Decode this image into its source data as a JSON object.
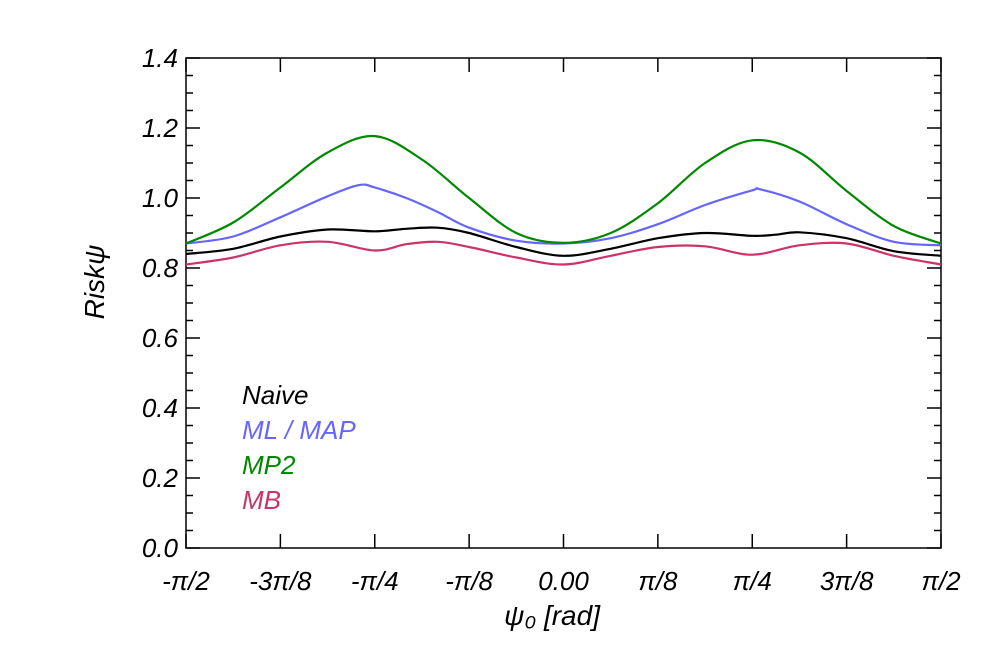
{
  "chart_data": {
    "type": "line",
    "title": "",
    "xlabel": "ψ₀ [rad]",
    "ylabel": "Riskψ",
    "xlim": [
      -1.5708,
      1.5708
    ],
    "ylim": [
      0.0,
      1.4
    ],
    "xticks": [
      -1.5708,
      -1.1781,
      -0.7854,
      -0.3927,
      0.0,
      0.3927,
      0.7854,
      1.1781,
      1.5708
    ],
    "xtick_labels": [
      "-π/2",
      "-3π/8",
      "-π/4",
      "-π/8",
      "0.00",
      "π/8",
      "π/4",
      "3π/8",
      "π/2"
    ],
    "yticks": [
      0.0,
      0.2,
      0.4,
      0.6,
      0.8,
      1.0,
      1.2,
      1.4
    ],
    "ytick_labels": [
      "0.0",
      "0.2",
      "0.4",
      "0.6",
      "0.8",
      "1.0",
      "1.2",
      "1.4"
    ],
    "grid": false,
    "legend_position": "lower-left",
    "series": [
      {
        "name": "Naive",
        "color": "#000000",
        "x": [
          -1.5708,
          -1.3744,
          -1.1781,
          -0.9817,
          -0.7854,
          -0.6545,
          -0.5236,
          -0.3927,
          -0.1963,
          0.0,
          0.1963,
          0.3927,
          0.589,
          0.7854,
          0.8836,
          0.9817,
          1.1781,
          1.3744,
          1.5708
        ],
        "y": [
          0.84,
          0.855,
          0.89,
          0.91,
          0.905,
          0.912,
          0.915,
          0.9,
          0.86,
          0.835,
          0.855,
          0.885,
          0.9,
          0.892,
          0.895,
          0.902,
          0.885,
          0.848,
          0.835
        ]
      },
      {
        "name": "ML / MAP",
        "color": "#6666ff",
        "x": [
          -1.5708,
          -1.3744,
          -1.1781,
          -0.9817,
          -0.8509,
          -0.7854,
          -0.6545,
          -0.5236,
          -0.3927,
          -0.1963,
          0.0,
          0.1963,
          0.3927,
          0.589,
          0.7854,
          0.8181,
          0.9817,
          1.1781,
          1.3744,
          1.5708
        ],
        "y": [
          0.87,
          0.89,
          0.945,
          1.005,
          1.037,
          1.03,
          1.0,
          0.96,
          0.915,
          0.878,
          0.87,
          0.885,
          0.925,
          0.98,
          1.022,
          1.025,
          0.99,
          0.925,
          0.875,
          0.865
        ]
      },
      {
        "name": "MP2",
        "color": "#008800",
        "x": [
          -1.5708,
          -1.3744,
          -1.1781,
          -0.9817,
          -0.7854,
          -0.589,
          -0.3927,
          -0.1963,
          0.0,
          0.1963,
          0.3927,
          0.589,
          0.7854,
          0.9817,
          1.1781,
          1.3744,
          1.5708
        ],
        "y": [
          0.87,
          0.93,
          1.03,
          1.13,
          1.177,
          1.11,
          1.0,
          0.9,
          0.872,
          0.9,
          0.985,
          1.1,
          1.165,
          1.13,
          1.02,
          0.92,
          0.87
        ]
      },
      {
        "name": "MB",
        "color": "#cc3366",
        "x": [
          -1.5708,
          -1.3744,
          -1.1781,
          -0.9817,
          -0.7854,
          -0.6545,
          -0.5236,
          -0.3927,
          -0.1963,
          0.0,
          0.1963,
          0.3927,
          0.589,
          0.7854,
          0.9817,
          1.1781,
          1.3744,
          1.5708
        ],
        "y": [
          0.81,
          0.83,
          0.865,
          0.875,
          0.85,
          0.868,
          0.875,
          0.86,
          0.83,
          0.81,
          0.835,
          0.86,
          0.862,
          0.838,
          0.865,
          0.87,
          0.835,
          0.81
        ]
      }
    ]
  }
}
